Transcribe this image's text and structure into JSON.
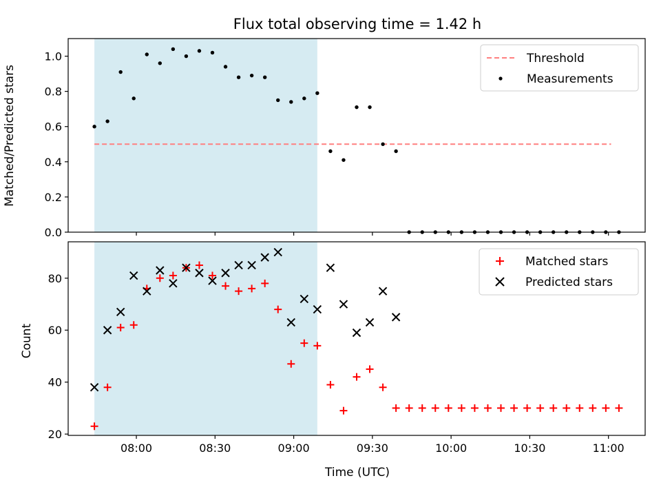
{
  "chart_data": [
    {
      "type": "scatter",
      "title": "Flux total observing time = 1.42 h",
      "ylabel": "Matched/Predicted stars",
      "xlabel": "",
      "ylim": [
        0,
        1.1
      ],
      "yticks": [
        "0.0",
        "0.2",
        "0.4",
        "0.6",
        "0.8",
        "1.0"
      ],
      "xlim": [
        "07:34",
        "11:14"
      ],
      "shaded_interval": [
        "07:44",
        "09:09"
      ],
      "threshold": {
        "name": "Threshold",
        "value": 0.5,
        "x_range": [
          "07:44",
          "11:01"
        ],
        "color": "#ff7f7f",
        "style": "dashed"
      },
      "legend_position": "upper right",
      "series": [
        {
          "name": "Measurements",
          "marker": "dot",
          "color": "#000000",
          "x": [
            "07:44",
            "07:49",
            "07:54",
            "07:59",
            "08:04",
            "08:09",
            "08:14",
            "08:19",
            "08:24",
            "08:29",
            "08:34",
            "08:39",
            "08:44",
            "08:49",
            "08:54",
            "08:59",
            "09:04",
            "09:09",
            "09:14",
            "09:19",
            "09:24",
            "09:29",
            "09:34",
            "09:39",
            "09:44",
            "09:49",
            "09:54",
            "09:59",
            "10:04",
            "10:09",
            "10:14",
            "10:19",
            "10:24",
            "10:29",
            "10:34",
            "10:39",
            "10:44",
            "10:49",
            "10:54",
            "10:59",
            "11:04"
          ],
          "y": [
            0.6,
            0.63,
            0.91,
            0.76,
            1.01,
            0.96,
            1.04,
            1.0,
            1.03,
            1.02,
            0.94,
            0.88,
            0.89,
            0.88,
            0.75,
            0.74,
            0.76,
            0.79,
            0.46,
            0.41,
            0.71,
            0.71,
            0.5,
            0.46,
            0,
            0,
            0,
            0,
            0,
            0,
            0,
            0,
            0,
            0,
            0,
            0,
            0,
            0,
            0,
            0,
            0
          ]
        }
      ]
    },
    {
      "type": "scatter",
      "title": "",
      "ylabel": "Count",
      "xlabel": "Time (UTC)",
      "ylim": [
        19.5,
        94
      ],
      "yticks": [
        "20",
        "40",
        "60",
        "80"
      ],
      "xticks": [
        "08:00",
        "08:30",
        "09:00",
        "09:30",
        "10:00",
        "10:30",
        "11:00"
      ],
      "xlim": [
        "07:34",
        "11:14"
      ],
      "shaded_interval": [
        "07:44",
        "09:09"
      ],
      "legend_position": "upper right",
      "series": [
        {
          "name": "Matched stars",
          "marker": "plus",
          "color": "#ff0000",
          "x": [
            "07:44",
            "07:49",
            "07:54",
            "07:59",
            "08:04",
            "08:09",
            "08:14",
            "08:19",
            "08:24",
            "08:29",
            "08:34",
            "08:39",
            "08:44",
            "08:49",
            "08:54",
            "08:59",
            "09:04",
            "09:09",
            "09:14",
            "09:19",
            "09:24",
            "09:29",
            "09:34",
            "09:39",
            "09:44",
            "09:49",
            "09:54",
            "09:59",
            "10:04",
            "10:09",
            "10:14",
            "10:19",
            "10:24",
            "10:29",
            "10:34",
            "10:39",
            "10:44",
            "10:49",
            "10:54",
            "10:59",
            "11:04"
          ],
          "y": [
            23,
            38,
            61,
            62,
            76,
            80,
            81,
            84,
            85,
            81,
            77,
            75,
            76,
            78,
            68,
            47,
            55,
            54,
            39,
            29,
            42,
            45,
            38,
            30,
            30,
            30,
            30,
            30,
            30,
            30,
            30,
            30,
            30,
            30,
            30,
            30,
            30,
            30,
            30,
            30,
            30
          ]
        },
        {
          "name": "Predicted stars",
          "marker": "x",
          "color": "#000000",
          "x": [
            "07:44",
            "07:49",
            "07:54",
            "07:59",
            "08:04",
            "08:09",
            "08:14",
            "08:19",
            "08:24",
            "08:29",
            "08:34",
            "08:39",
            "08:44",
            "08:49",
            "08:54",
            "08:59",
            "09:04",
            "09:09",
            "09:14",
            "09:19",
            "09:24",
            "09:29",
            "09:34",
            "09:39"
          ],
          "y": [
            38,
            60,
            67,
            81,
            75,
            83,
            78,
            84,
            82,
            79,
            82,
            85,
            85,
            88,
            90,
            63,
            72,
            68,
            84,
            70,
            59,
            63,
            75,
            65
          ]
        }
      ]
    }
  ],
  "colors": {
    "shade": "#add8e6",
    "shade_opacity": 0.5,
    "axis": "#000000"
  }
}
